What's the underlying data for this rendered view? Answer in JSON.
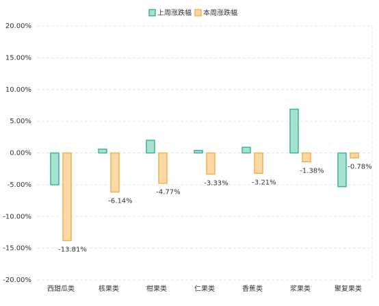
{
  "chart_data": {
    "type": "bar",
    "categories": [
      "西甜瓜类",
      "核果类",
      "柑果类",
      "仁果类",
      "香蕉类",
      "浆果类",
      "聚复果类"
    ],
    "series": [
      {
        "name": "上周涨跌幅",
        "color": "#a8e0d1",
        "stroke": "#3bb493",
        "values": [
          -5.0,
          0.6,
          2.0,
          0.4,
          0.9,
          6.9,
          -5.3
        ]
      },
      {
        "name": "本周涨跌幅",
        "color": "#fbd9a6",
        "stroke": "#f5b04e",
        "values": [
          -13.81,
          -6.14,
          -4.77,
          -3.33,
          -3.21,
          -1.38,
          -0.78
        ],
        "value_labels": [
          "-13.81%",
          "-6.14%",
          "-4.77%",
          "-3.33%",
          "-3.21%",
          "-1.38%",
          "-0.78%"
        ]
      }
    ],
    "ylim": [
      -20,
      20
    ],
    "yticks": [
      {
        "value": -20,
        "label": "-20.00%"
      },
      {
        "value": -15,
        "label": "-15.00%"
      },
      {
        "value": -10,
        "label": "-10.00%"
      },
      {
        "value": -5,
        "label": "-5.00%"
      },
      {
        "value": 0,
        "label": "0.00%"
      },
      {
        "value": 5,
        "label": "5.00%"
      },
      {
        "value": 10,
        "label": "10.00%"
      },
      {
        "value": 15,
        "label": "15.00%"
      },
      {
        "value": 20,
        "label": "20.00%"
      }
    ],
    "grid": true,
    "legend": "top"
  }
}
